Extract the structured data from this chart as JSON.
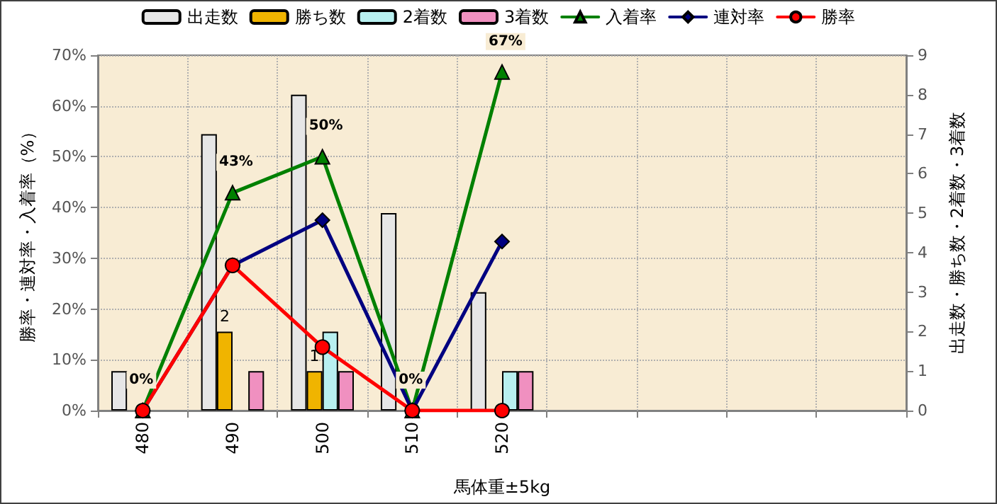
{
  "chart_data": {
    "type": "bar",
    "categories": [
      "480",
      "490",
      "500",
      "510",
      "520",
      null,
      null,
      null,
      null
    ],
    "xlabel": "馬体重±5kg",
    "ylabel": "勝率・連対率・入着率（%）",
    "y2label": "出走数・勝ち数・2着数・3着数",
    "series": [
      {
        "name": "出走数",
        "axis": "y2",
        "color": "#e6e6e6",
        "values": [
          1,
          7,
          8,
          5,
          3,
          null,
          null,
          null,
          null
        ]
      },
      {
        "name": "勝ち数",
        "axis": "y2",
        "color": "#f0b400",
        "values": [
          null,
          2,
          1,
          null,
          null,
          null,
          null,
          null,
          null
        ],
        "value_labels": [
          null,
          "2",
          "1",
          null,
          null,
          null,
          null,
          null,
          null
        ]
      },
      {
        "name": "2着数",
        "axis": "y2",
        "color": "#b8f0f0",
        "values": [
          null,
          null,
          2,
          null,
          1,
          null,
          null,
          null,
          null
        ]
      },
      {
        "name": "3着数",
        "axis": "y2",
        "color": "#f090c0",
        "values": [
          null,
          1,
          1,
          null,
          1,
          null,
          null,
          null,
          null
        ]
      },
      {
        "name": "入着率",
        "type": "line",
        "axis": "y",
        "marker": "triangle",
        "color": "#008000",
        "values": [
          0,
          42.9,
          50,
          0,
          66.7,
          null,
          null,
          null,
          null
        ],
        "value_labels": [
          "0%",
          "43%",
          "50%",
          "0%",
          "67%",
          null,
          null,
          null,
          null
        ]
      },
      {
        "name": "連対率",
        "type": "line",
        "axis": "y",
        "marker": "diamond",
        "color": "#000080",
        "values": [
          0,
          28.6,
          37.5,
          0,
          33.3,
          null,
          null,
          null,
          null
        ]
      },
      {
        "name": "勝率",
        "type": "line",
        "axis": "y",
        "marker": "circle",
        "color": "#ff0000",
        "values": [
          0,
          28.6,
          12.5,
          0,
          0,
          null,
          null,
          null,
          null
        ]
      }
    ],
    "ylim": [
      0,
      70
    ],
    "yticks": [
      {
        "value": 0,
        "label": "0%"
      },
      {
        "value": 10,
        "label": "10%"
      },
      {
        "value": 20,
        "label": "20%"
      },
      {
        "value": 30,
        "label": "30%"
      },
      {
        "value": 40,
        "label": "40%"
      },
      {
        "value": 50,
        "label": "50%"
      },
      {
        "value": 60,
        "label": "60%"
      },
      {
        "value": 70,
        "label": "70%"
      }
    ],
    "y2lim": [
      0,
      9
    ],
    "y2ticks": [
      0,
      1,
      2,
      3,
      4,
      5,
      6,
      7,
      8,
      9
    ],
    "grid": true,
    "legend": "top"
  }
}
